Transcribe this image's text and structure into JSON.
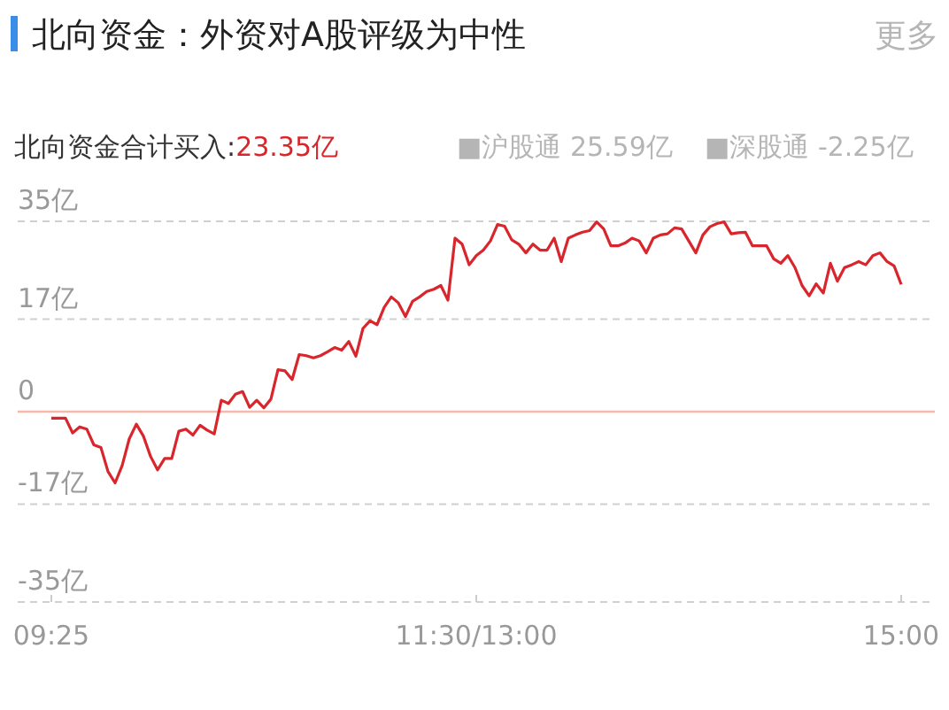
{
  "chart_data": {
    "type": "line",
    "title": "北向资金：外资对A股评级为中性",
    "subtitle": "北向资金合计买入:23.35亿",
    "annotations": [
      "■沪股通 25.59亿",
      "■深股通 -2.25亿",
      "更多"
    ],
    "categories": [
      "09:25",
      null,
      null,
      null,
      null,
      null,
      null,
      null,
      null,
      null,
      null,
      null,
      null,
      null,
      null,
      null,
      null,
      null,
      null,
      null,
      null,
      null,
      null,
      null,
      null,
      null,
      null,
      null,
      null,
      null,
      null,
      null,
      null,
      null,
      null,
      null,
      null,
      null,
      null,
      null,
      null,
      null,
      null,
      null,
      null,
      null,
      null,
      null,
      null,
      null,
      null,
      null,
      null,
      null,
      null,
      null,
      null,
      null,
      null,
      null,
      "11:30/13:00",
      null,
      null,
      null,
      null,
      null,
      null,
      null,
      null,
      null,
      null,
      null,
      null,
      null,
      null,
      null,
      null,
      null,
      null,
      null,
      null,
      null,
      null,
      null,
      null,
      null,
      null,
      null,
      null,
      null,
      null,
      null,
      null,
      null,
      null,
      null,
      null,
      null,
      null,
      null,
      null,
      null,
      null,
      null,
      null,
      null,
      null,
      null,
      null,
      null,
      null,
      null,
      null,
      null,
      null,
      null,
      null,
      null,
      null,
      null,
      "15:00"
    ],
    "series": [
      {
        "color": "#d9262c",
        "values": [
          -1.2,
          -1.2,
          -1.2,
          -3.9,
          -2.8,
          -3.2,
          -6.1,
          -6.6,
          -11.0,
          -13.1,
          -9.9,
          -5.0,
          -2.3,
          -4.5,
          -8.2,
          -10.7,
          -8.6,
          -8.6,
          -3.6,
          -3.2,
          -4.3,
          -2.5,
          -3.4,
          -4.1,
          2.1,
          1.5,
          3.2,
          3.7,
          0.8,
          2.1,
          0.7,
          2.3,
          7.7,
          7.5,
          5.9,
          10.5,
          10.3,
          9.9,
          10.3,
          11.0,
          11.8,
          11.3,
          12.9,
          10.2,
          15.3,
          16.7,
          16.0,
          19.2,
          21.1,
          20.0,
          17.5,
          20.3,
          21.1,
          22.1,
          22.5,
          23.2,
          20.5,
          31.9,
          30.8,
          27.0,
          28.7,
          29.7,
          31.4,
          34.4,
          34.1,
          31.6,
          30.8,
          29.2,
          30.8,
          29.7,
          29.7,
          31.9,
          27.6,
          31.9,
          32.5,
          33.0,
          33.3,
          34.9,
          33.6,
          30.5,
          30.5,
          31.0,
          31.9,
          31.4,
          29.2,
          31.9,
          32.5,
          32.7,
          33.8,
          33.6,
          31.4,
          29.2,
          32.5,
          34.0,
          34.6,
          34.9,
          32.7,
          32.9,
          33.0,
          30.5,
          30.5,
          30.5,
          28.1,
          27.3,
          28.7,
          26.5,
          23.2,
          21.3,
          23.5,
          21.8,
          27.3,
          24.0,
          26.5,
          27.0,
          27.6,
          27.0,
          28.7,
          29.2,
          27.6,
          26.8,
          23.4
        ]
      }
    ],
    "ylim": [
      -35,
      35
    ],
    "yticks": [
      {
        "value": 35,
        "label": "35亿"
      },
      {
        "value": 17,
        "label": "17亿"
      },
      0,
      {
        "value": -17,
        "label": "-17亿"
      },
      {
        "value": -35,
        "label": "-35亿"
      }
    ],
    "grid": "y",
    "line_style": "solid",
    "marker": "none",
    "ref_lines": [
      {
        "axis": "y",
        "value": 0,
        "color": "#f4b9a8"
      }
    ]
  }
}
